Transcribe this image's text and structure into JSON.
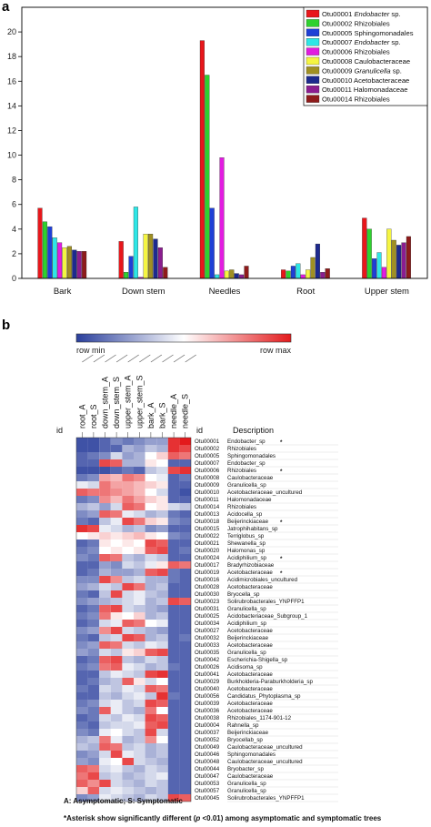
{
  "chart_data": [
    {
      "type": "bar",
      "panel": "a",
      "categories": [
        "Bark",
        "Down stem",
        "Needles",
        "Root",
        "Upper stem"
      ],
      "ylim": [
        0,
        22
      ],
      "yticks": [
        0,
        2,
        4,
        6,
        8,
        10,
        12,
        14,
        16,
        18,
        20
      ],
      "series": [
        {
          "name": "Otu00001",
          "taxon": "Endobacter sp.",
          "italic": true,
          "color": "#e8161b",
          "values": [
            5.7,
            3.0,
            19.3,
            0.7,
            4.9
          ]
        },
        {
          "name": "Otu00002",
          "taxon": "Rhizobiales",
          "italic": false,
          "color": "#2fd12f",
          "values": [
            4.6,
            0.5,
            16.5,
            0.6,
            4.0
          ]
        },
        {
          "name": "Otu00005",
          "taxon": "Sphingomonadales",
          "italic": false,
          "color": "#1f3fd6",
          "values": [
            4.2,
            1.8,
            5.7,
            1.0,
            1.6
          ]
        },
        {
          "name": "Otu00007",
          "taxon": "Endobacter sp.",
          "italic": true,
          "color": "#2ee6e6",
          "values": [
            3.3,
            5.8,
            0.3,
            1.2,
            2.1
          ]
        },
        {
          "name": "Otu00006",
          "taxon": "Rhizobiales",
          "italic": false,
          "color": "#e21ce0",
          "values": [
            2.9,
            0.1,
            9.8,
            0.3,
            0.9
          ]
        },
        {
          "name": "Otu00008",
          "taxon": "Caulobacteraceae",
          "italic": false,
          "color": "#f5f542",
          "values": [
            2.5,
            3.6,
            0.6,
            0.7,
            4.0
          ]
        },
        {
          "name": "Otu00009",
          "taxon": "Granulicella sp.",
          "italic": true,
          "color": "#a09022",
          "values": [
            2.6,
            3.6,
            0.7,
            1.7,
            3.1
          ]
        },
        {
          "name": "Otu00010",
          "taxon": "Acetobacteraceae",
          "italic": false,
          "color": "#1d2a8e",
          "values": [
            2.3,
            3.2,
            0.4,
            2.8,
            2.7
          ]
        },
        {
          "name": "Otu00011",
          "taxon": "Halomonadaceae",
          "italic": false,
          "color": "#8b1d8f",
          "values": [
            2.2,
            2.5,
            0.3,
            0.5,
            2.9
          ]
        },
        {
          "name": "Otu00014",
          "taxon": "Rhizobiales",
          "italic": false,
          "color": "#8e1b1b",
          "values": [
            2.2,
            0.9,
            1.0,
            0.8,
            3.4
          ]
        }
      ]
    },
    {
      "type": "heatmap",
      "panel": "b",
      "columns": [
        "root_A",
        "root_S",
        "down_stem_A",
        "down_stem_S",
        "upper_stem_A",
        "upper_stem_S",
        "bark_A",
        "bark_S",
        "needle_A",
        "needle_S"
      ],
      "scale": {
        "min_label": "row min",
        "max_label": "row max",
        "min_color": "#2a3f9c",
        "mid_color": "#ffffff",
        "max_color": "#e31a1c"
      },
      "row_header_id": "id",
      "header_id": "id",
      "header_desc": "Description",
      "rows": [
        {
          "id": "Otu00001",
          "desc": "Endobacter_sp",
          "star": true,
          "values": [
            0.05,
            0.05,
            0.1,
            0.2,
            0.15,
            0.2,
            0.25,
            0.25,
            0.95,
            1.0
          ]
        },
        {
          "id": "Otu00002",
          "desc": "Rhizobiales",
          "star": false,
          "values": [
            0.05,
            0.05,
            0.1,
            0.1,
            0.3,
            0.25,
            0.35,
            0.3,
            0.95,
            0.9
          ]
        },
        {
          "id": "Otu00005",
          "desc": "Sphingomonadales",
          "star": false,
          "values": [
            0.1,
            0.15,
            0.2,
            0.4,
            0.25,
            0.3,
            0.5,
            0.6,
            0.85,
            0.8
          ]
        },
        {
          "id": "Otu00007",
          "desc": "Endobacter_sp",
          "star": false,
          "values": [
            0.1,
            0.1,
            0.9,
            0.85,
            0.3,
            0.3,
            0.55,
            0.5,
            0.1,
            0.1
          ]
        },
        {
          "id": "Otu00006",
          "desc": "Rhizobiales",
          "star": true,
          "values": [
            0.05,
            0.05,
            0.05,
            0.1,
            0.15,
            0.1,
            0.35,
            0.4,
            0.9,
            0.95
          ]
        },
        {
          "id": "Otu00008",
          "desc": "Caulobacteraceae",
          "star": false,
          "values": [
            0.15,
            0.2,
            0.7,
            0.65,
            0.8,
            0.75,
            0.5,
            0.45,
            0.1,
            0.15
          ]
        },
        {
          "id": "Otu00009",
          "desc": "Granulicella_sp",
          "star": false,
          "values": [
            0.45,
            0.4,
            0.8,
            0.7,
            0.7,
            0.65,
            0.6,
            0.55,
            0.1,
            0.1
          ]
        },
        {
          "id": "Otu00010",
          "desc": "Acetobacteraceae_uncultured",
          "star": false,
          "values": [
            0.85,
            0.8,
            0.8,
            0.75,
            0.7,
            0.65,
            0.5,
            0.4,
            0.1,
            0.05
          ]
        },
        {
          "id": "Otu00011",
          "desc": "Halomonadaceae",
          "star": false,
          "values": [
            0.15,
            0.2,
            0.75,
            0.65,
            0.8,
            0.7,
            0.6,
            0.55,
            0.1,
            0.1
          ]
        },
        {
          "id": "Otu00014",
          "desc": "Rhizobiales",
          "star": false,
          "values": [
            0.3,
            0.35,
            0.25,
            0.4,
            0.85,
            0.8,
            0.5,
            0.55,
            0.4,
            0.35
          ]
        },
        {
          "id": "Otu00013",
          "desc": "Acidocella_sp",
          "star": false,
          "values": [
            0.2,
            0.25,
            0.85,
            0.8,
            0.45,
            0.4,
            0.3,
            0.35,
            0.15,
            0.1
          ]
        },
        {
          "id": "Otu00018",
          "desc": "Beijerinckiaceae",
          "star": true,
          "values": [
            0.15,
            0.1,
            0.35,
            0.45,
            0.9,
            0.8,
            0.6,
            0.55,
            0.2,
            0.15
          ]
        },
        {
          "id": "Otu00015",
          "desc": "Jatrophihabitans_sp",
          "star": false,
          "values": [
            0.95,
            0.9,
            0.45,
            0.4,
            0.3,
            0.35,
            0.2,
            0.25,
            0.1,
            0.1
          ]
        },
        {
          "id": "Otu00022",
          "desc": "Terriglobus_sp",
          "star": false,
          "values": [
            0.5,
            0.55,
            0.6,
            0.55,
            0.6,
            0.65,
            0.55,
            0.5,
            0.2,
            0.15
          ]
        },
        {
          "id": "Otu00021",
          "desc": "Shewanella_sp",
          "star": false,
          "values": [
            0.1,
            0.15,
            0.55,
            0.5,
            0.55,
            0.5,
            0.9,
            0.85,
            0.1,
            0.1
          ]
        },
        {
          "id": "Otu00020",
          "desc": "Halomonas_sp",
          "star": false,
          "values": [
            0.15,
            0.2,
            0.5,
            0.55,
            0.5,
            0.55,
            0.85,
            0.9,
            0.1,
            0.15
          ]
        },
        {
          "id": "Otu00024",
          "desc": "Acidiphilium_sp",
          "star": true,
          "values": [
            0.2,
            0.15,
            0.85,
            0.8,
            0.35,
            0.3,
            0.4,
            0.35,
            0.1,
            0.1
          ]
        },
        {
          "id": "Otu00017",
          "desc": "Bradyrhizobiaceae",
          "star": false,
          "values": [
            0.1,
            0.1,
            0.25,
            0.2,
            0.4,
            0.35,
            0.45,
            0.55,
            0.85,
            0.8
          ]
        },
        {
          "id": "Otu00019",
          "desc": "Acetobacteraceae",
          "star": true,
          "values": [
            0.1,
            0.15,
            0.3,
            0.25,
            0.25,
            0.3,
            0.85,
            0.9,
            0.15,
            0.1
          ]
        },
        {
          "id": "Otu00016",
          "desc": "Acidimicrobiales_uncultured",
          "star": false,
          "values": [
            0.2,
            0.2,
            0.9,
            0.75,
            0.35,
            0.4,
            0.3,
            0.3,
            0.15,
            0.1
          ]
        },
        {
          "id": "Otu00028",
          "desc": "Acetobacteraceae",
          "star": false,
          "values": [
            0.25,
            0.3,
            0.4,
            0.35,
            0.9,
            0.8,
            0.3,
            0.35,
            0.1,
            0.1
          ]
        },
        {
          "id": "Otu00030",
          "desc": "Bryocella_sp",
          "star": false,
          "values": [
            0.15,
            0.1,
            0.35,
            0.9,
            0.4,
            0.45,
            0.35,
            0.3,
            0.1,
            0.1
          ]
        },
        {
          "id": "Otu00023",
          "desc": "Solirubrobacterales_YNPFFP1",
          "star": false,
          "values": [
            0.2,
            0.25,
            0.3,
            0.35,
            0.4,
            0.45,
            0.3,
            0.35,
            0.9,
            0.85
          ]
        },
        {
          "id": "Otu00031",
          "desc": "Granulicella_sp",
          "star": false,
          "values": [
            0.1,
            0.15,
            0.85,
            0.9,
            0.4,
            0.35,
            0.3,
            0.25,
            0.1,
            0.1
          ]
        },
        {
          "id": "Otu00025",
          "desc": "Acidobacteriaceae_Subgroup_1",
          "star": false,
          "values": [
            0.15,
            0.2,
            0.8,
            0.55,
            0.5,
            0.6,
            0.3,
            0.35,
            0.1,
            0.1
          ]
        },
        {
          "id": "Otu00034",
          "desc": "Acidiphilium_sp",
          "star": false,
          "values": [
            0.1,
            0.15,
            0.4,
            0.45,
            0.85,
            0.8,
            0.5,
            0.45,
            0.1,
            0.1
          ]
        },
        {
          "id": "Otu00027",
          "desc": "Acetobacteraceae",
          "star": false,
          "values": [
            0.2,
            0.25,
            0.75,
            0.9,
            0.4,
            0.35,
            0.3,
            0.25,
            0.1,
            0.1
          ]
        },
        {
          "id": "Otu00032",
          "desc": "Beijerinckiaceae",
          "star": false,
          "values": [
            0.15,
            0.1,
            0.35,
            0.4,
            0.9,
            0.85,
            0.3,
            0.35,
            0.1,
            0.15
          ]
        },
        {
          "id": "Otu00033",
          "desc": "Acetobacteraceae",
          "star": false,
          "values": [
            0.2,
            0.25,
            0.85,
            0.8,
            0.4,
            0.35,
            0.45,
            0.4,
            0.1,
            0.1
          ]
        },
        {
          "id": "Otu00035",
          "desc": "Granulicella_sp",
          "star": false,
          "values": [
            0.25,
            0.2,
            0.4,
            0.35,
            0.55,
            0.6,
            0.85,
            0.9,
            0.1,
            0.1
          ]
        },
        {
          "id": "Otu00042",
          "desc": "Escherichia-Shigella_sp",
          "star": false,
          "values": [
            0.1,
            0.15,
            0.85,
            0.9,
            0.35,
            0.3,
            0.4,
            0.35,
            0.1,
            0.1
          ]
        },
        {
          "id": "Otu00026",
          "desc": "Acidisoma_sp",
          "star": false,
          "values": [
            0.15,
            0.2,
            0.8,
            0.85,
            0.45,
            0.4,
            0.3,
            0.35,
            0.15,
            0.1
          ]
        },
        {
          "id": "Otu00041",
          "desc": "Acetobacteraceae",
          "star": false,
          "values": [
            0.1,
            0.1,
            0.35,
            0.45,
            0.4,
            0.35,
            0.9,
            0.95,
            0.1,
            0.1
          ]
        },
        {
          "id": "Otu00029",
          "desc": "Burkholderia-Paraburkholderia_sp",
          "star": false,
          "values": [
            0.1,
            0.15,
            0.3,
            0.35,
            0.85,
            0.55,
            0.4,
            0.5,
            0.1,
            0.1
          ]
        },
        {
          "id": "Otu00040",
          "desc": "Acetobacteraceae",
          "star": false,
          "values": [
            0.15,
            0.1,
            0.4,
            0.35,
            0.45,
            0.4,
            0.85,
            0.8,
            0.1,
            0.1
          ]
        },
        {
          "id": "Otu00056",
          "desc": "Candidatus_Phytoplasma_sp",
          "star": false,
          "values": [
            0.1,
            0.1,
            0.35,
            0.3,
            0.4,
            0.45,
            0.35,
            0.95,
            0.15,
            0.1
          ]
        },
        {
          "id": "Otu00039",
          "desc": "Acetobacteraceae",
          "star": false,
          "values": [
            0.15,
            0.2,
            0.4,
            0.45,
            0.35,
            0.4,
            0.9,
            0.85,
            0.1,
            0.1
          ]
        },
        {
          "id": "Otu00036",
          "desc": "Acetobacteraceae",
          "star": false,
          "values": [
            0.2,
            0.15,
            0.85,
            0.45,
            0.35,
            0.3,
            0.8,
            0.5,
            0.1,
            0.1
          ]
        },
        {
          "id": "Otu00038",
          "desc": "Rhizobiales_1174-901-12",
          "star": false,
          "values": [
            0.1,
            0.15,
            0.4,
            0.35,
            0.45,
            0.4,
            0.9,
            0.85,
            0.1,
            0.1
          ]
        },
        {
          "id": "Otu00004",
          "desc": "Rahnella_sp",
          "star": false,
          "values": [
            0.15,
            0.1,
            0.35,
            0.4,
            0.4,
            0.45,
            0.85,
            0.9,
            0.1,
            0.1
          ]
        },
        {
          "id": "Otu00037",
          "desc": "Beijerinckiaceae",
          "star": false,
          "values": [
            0.2,
            0.15,
            0.45,
            0.5,
            0.4,
            0.35,
            0.9,
            0.4,
            0.1,
            0.1
          ]
        },
        {
          "id": "Otu00052",
          "desc": "Bryocellab_sp",
          "star": false,
          "values": [
            0.3,
            0.35,
            0.8,
            0.45,
            0.3,
            0.35,
            0.75,
            0.5,
            0.1,
            0.1
          ]
        },
        {
          "id": "Otu00049",
          "desc": "Caulobacteraceae_uncultured",
          "star": false,
          "values": [
            0.35,
            0.3,
            0.85,
            0.8,
            0.35,
            0.4,
            0.3,
            0.35,
            0.1,
            0.1
          ]
        },
        {
          "id": "Otu00046",
          "desc": "Sphingomonadales",
          "star": false,
          "values": [
            0.2,
            0.25,
            0.4,
            0.9,
            0.45,
            0.4,
            0.3,
            0.35,
            0.1,
            0.1
          ]
        },
        {
          "id": "Otu00048",
          "desc": "Caulobacteraceae_uncultured",
          "star": false,
          "values": [
            0.25,
            0.2,
            0.45,
            0.5,
            0.9,
            0.4,
            0.35,
            0.3,
            0.1,
            0.1
          ]
        },
        {
          "id": "Otu00044",
          "desc": "Bryobacter_sp",
          "star": false,
          "values": [
            0.85,
            0.8,
            0.4,
            0.45,
            0.35,
            0.3,
            0.4,
            0.35,
            0.1,
            0.1
          ]
        },
        {
          "id": "Otu00047",
          "desc": "Caulobacteraceae",
          "star": false,
          "values": [
            0.8,
            0.9,
            0.35,
            0.4,
            0.3,
            0.35,
            0.4,
            0.45,
            0.1,
            0.1
          ]
        },
        {
          "id": "Otu00053",
          "desc": "Granulicella_sp",
          "star": false,
          "values": [
            0.85,
            0.75,
            0.9,
            0.4,
            0.35,
            0.3,
            0.4,
            0.35,
            0.1,
            0.1
          ]
        },
        {
          "id": "Otu00057",
          "desc": "Granulicella_sp",
          "star": false,
          "values": [
            0.6,
            0.85,
            0.4,
            0.45,
            0.4,
            0.35,
            0.3,
            0.35,
            0.1,
            0.1
          ]
        },
        {
          "id": "Otu00045",
          "desc": "Solirubrobacterales_YNPFFP1",
          "star": false,
          "values": [
            0.2,
            0.25,
            0.45,
            0.4,
            0.35,
            0.3,
            0.4,
            0.35,
            0.9,
            0.85
          ]
        }
      ]
    }
  ],
  "panels": {
    "a": "a",
    "b": "b"
  },
  "footnote": {
    "legend_line": "A: Asymptomatic; S: Symptomatic",
    "asterisk_pre": "*Asterisk show significantly different (",
    "asterisk_p": "p",
    "asterisk_mid": " <0.01) among asymptomatic and symptomatic trees"
  }
}
